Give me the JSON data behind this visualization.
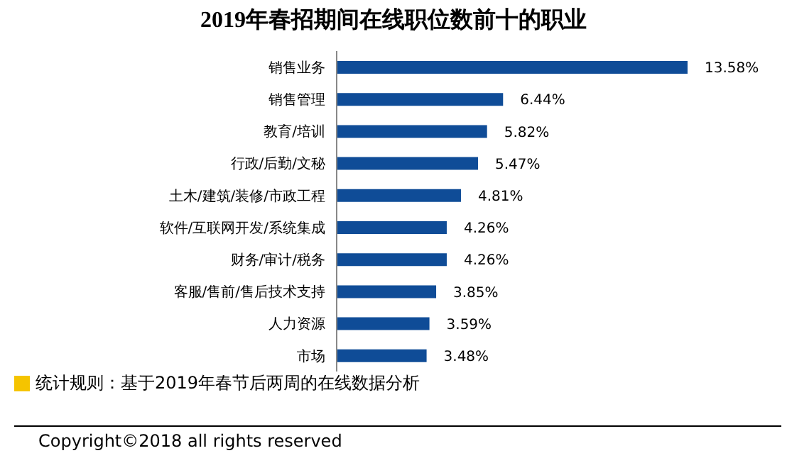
{
  "chart_data": {
    "type": "bar",
    "orientation": "horizontal",
    "title": "2019年春招期间在线职位数前十的职业",
    "categories": [
      "销售业务",
      "销售管理",
      "教育/培训",
      "行政/后勤/文秘",
      "土木/建筑/装修/市政工程",
      "软件/互联网开发/系统集成",
      "财务/审计/税务",
      "客服/售前/售后技术支持",
      "人力资源",
      "市场"
    ],
    "values": [
      13.58,
      6.44,
      5.82,
      5.47,
      4.81,
      4.26,
      4.26,
      3.85,
      3.59,
      3.48
    ],
    "value_labels": [
      "13.58%",
      "6.44%",
      "5.82%",
      "5.47%",
      "4.81%",
      "4.26%",
      "4.26%",
      "3.85%",
      "3.59%",
      "3.48%"
    ],
    "color": "#0f4c97",
    "annotations": [
      "统计规则：基于2019年春节后两周的在线数据分析",
      "Copyright©2018 all rights reserved"
    ]
  }
}
